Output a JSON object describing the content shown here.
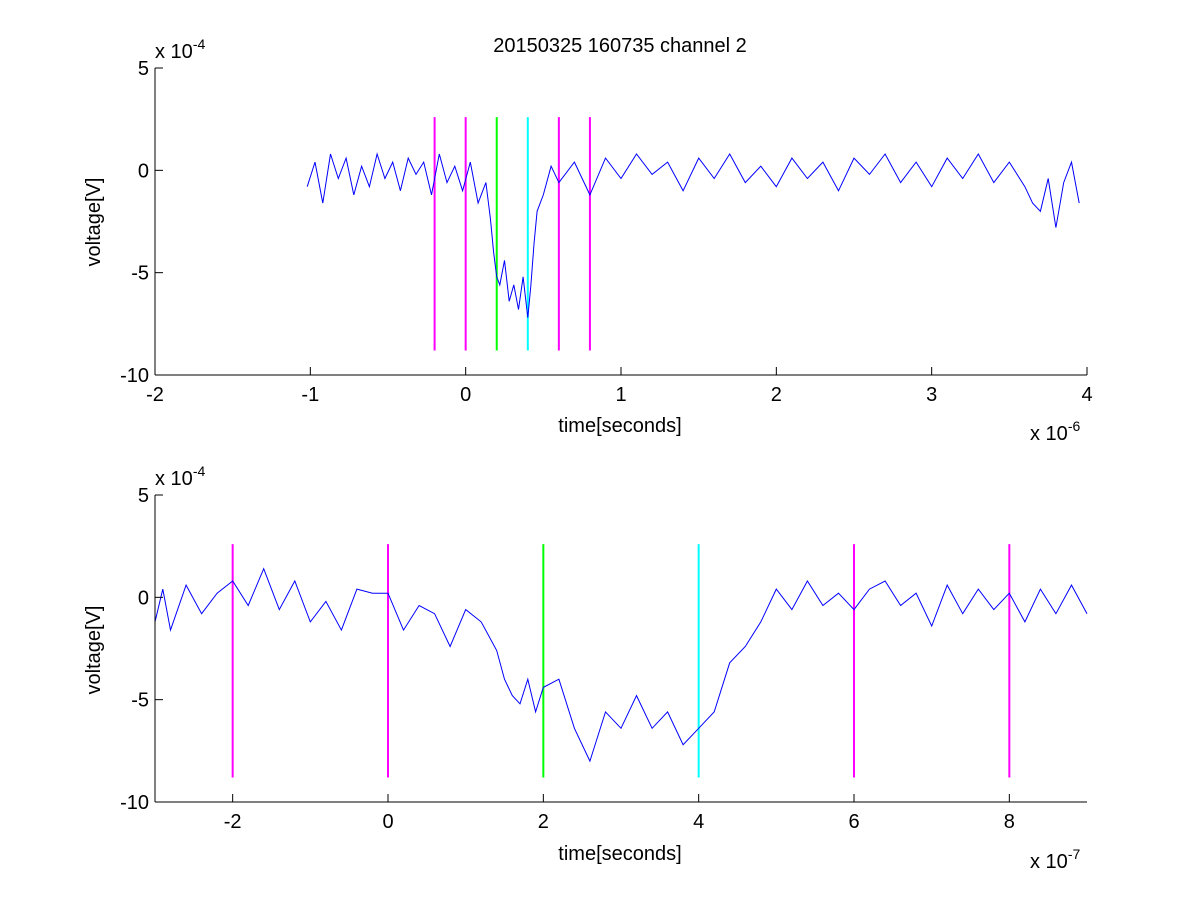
{
  "figure_title": "20150325 160735 channel 2",
  "chart_data": [
    {
      "type": "line",
      "title": "20150325 160735 channel 2",
      "xlabel": "time[seconds]",
      "ylabel": "voltage[V]",
      "x_exponent": "x 10",
      "x_exponent_power": "-6",
      "y_exponent": "x 10",
      "y_exponent_power": "-4",
      "xlim": [
        -2,
        4
      ],
      "ylim": [
        -10,
        5
      ],
      "xticks": [
        "-2",
        "-1",
        "0",
        "1",
        "2",
        "3",
        "4"
      ],
      "yticks": [
        "5",
        "0",
        "-5",
        "-10"
      ],
      "grid": false,
      "signal_color": "#0000ff",
      "series": [
        {
          "x": [
            -1.02,
            -0.97,
            -0.92,
            -0.87,
            -0.82,
            -0.77,
            -0.72,
            -0.67,
            -0.62,
            -0.57,
            -0.52,
            -0.47,
            -0.42,
            -0.37,
            -0.32,
            -0.27,
            -0.22,
            -0.17,
            -0.12,
            -0.07,
            -0.02,
            0.03,
            0.08,
            0.13,
            0.16,
            0.18,
            0.2,
            0.22,
            0.25,
            0.28,
            0.31,
            0.34,
            0.37,
            0.4,
            0.42,
            0.44,
            0.46,
            0.5,
            0.55,
            0.6,
            0.7,
            0.8,
            0.9,
            1.0,
            1.1,
            1.2,
            1.3,
            1.4,
            1.5,
            1.6,
            1.7,
            1.8,
            1.9,
            2.0,
            2.1,
            2.2,
            2.3,
            2.4,
            2.5,
            2.6,
            2.7,
            2.8,
            2.9,
            3.0,
            3.1,
            3.2,
            3.3,
            3.4,
            3.5,
            3.6,
            3.65,
            3.7,
            3.75,
            3.8,
            3.85,
            3.9,
            3.95
          ],
          "y": [
            -0.8,
            0.4,
            -1.6,
            0.8,
            -0.4,
            0.6,
            -1.2,
            0.2,
            -0.8,
            0.8,
            -0.4,
            0.4,
            -1.0,
            0.6,
            -0.2,
            0.4,
            -1.2,
            0.8,
            -0.6,
            0.2,
            -1.0,
            0.4,
            -1.6,
            -0.6,
            -2.4,
            -4.0,
            -5.2,
            -5.6,
            -4.4,
            -6.4,
            -5.6,
            -6.8,
            -5.2,
            -7.2,
            -5.6,
            -3.6,
            -2.0,
            -1.2,
            0.2,
            -0.6,
            0.4,
            -1.2,
            0.6,
            -0.4,
            0.8,
            -0.2,
            0.4,
            -1.0,
            0.6,
            -0.4,
            0.8,
            -0.6,
            0.2,
            -0.8,
            0.6,
            -0.4,
            0.4,
            -1.0,
            0.6,
            -0.2,
            0.8,
            -0.6,
            0.4,
            -0.8,
            0.6,
            -0.4,
            0.8,
            -0.6,
            0.4,
            -0.8,
            -1.6,
            -2.0,
            -0.4,
            -2.8,
            -0.6,
            0.4,
            -1.6
          ]
        }
      ],
      "markers": [
        {
          "x": -0.2,
          "color": "#ff00ff"
        },
        {
          "x": 0.0,
          "color": "#ff00ff"
        },
        {
          "x": 0.2,
          "color": "#00ff00"
        },
        {
          "x": 0.4,
          "color": "#00ffff"
        },
        {
          "x": 0.6,
          "color": "#ff00ff"
        },
        {
          "x": 0.8,
          "color": "#ff00ff"
        }
      ],
      "marker_range": [
        -8.8,
        2.6
      ]
    },
    {
      "type": "line",
      "title": "",
      "xlabel": "time[seconds]",
      "ylabel": "voltage[V]",
      "x_exponent": "x 10",
      "x_exponent_power": "-7",
      "y_exponent": "x 10",
      "y_exponent_power": "-4",
      "xlim": [
        -3,
        9
      ],
      "ylim": [
        -10,
        5
      ],
      "xticks": [
        "-2",
        "0",
        "2",
        "4",
        "6",
        "8"
      ],
      "xtick_values": [
        -2,
        0,
        2,
        4,
        6,
        8
      ],
      "yticks": [
        "5",
        "0",
        "-5",
        "-10"
      ],
      "grid": false,
      "signal_color": "#0000ff",
      "series": [
        {
          "x": [
            -3.0,
            -2.9,
            -2.8,
            -2.6,
            -2.4,
            -2.2,
            -2.0,
            -1.8,
            -1.6,
            -1.4,
            -1.2,
            -1.0,
            -0.8,
            -0.6,
            -0.4,
            -0.2,
            0.0,
            0.2,
            0.4,
            0.6,
            0.8,
            1.0,
            1.2,
            1.4,
            1.5,
            1.6,
            1.7,
            1.8,
            1.9,
            2.0,
            2.2,
            2.4,
            2.6,
            2.8,
            3.0,
            3.2,
            3.4,
            3.6,
            3.8,
            4.0,
            4.2,
            4.4,
            4.6,
            4.8,
            5.0,
            5.2,
            5.4,
            5.6,
            5.8,
            6.0,
            6.2,
            6.4,
            6.6,
            6.8,
            7.0,
            7.2,
            7.4,
            7.6,
            7.8,
            8.0,
            8.2,
            8.4,
            8.6,
            8.8,
            9.0
          ],
          "y": [
            -1.2,
            0.4,
            -1.6,
            0.6,
            -0.8,
            0.2,
            0.8,
            -0.4,
            1.4,
            -0.6,
            0.8,
            -1.2,
            -0.2,
            -1.6,
            0.4,
            0.2,
            0.2,
            -1.6,
            -0.4,
            -0.8,
            -2.4,
            -0.6,
            -1.2,
            -2.6,
            -4.0,
            -4.8,
            -5.2,
            -4.0,
            -5.6,
            -4.4,
            -4.0,
            -6.4,
            -8.0,
            -5.6,
            -6.4,
            -4.8,
            -6.4,
            -5.6,
            -7.2,
            -6.4,
            -5.6,
            -3.2,
            -2.4,
            -1.2,
            0.4,
            -0.6,
            0.8,
            -0.4,
            0.2,
            -0.6,
            0.4,
            0.8,
            -0.4,
            0.2,
            -1.4,
            0.6,
            -0.8,
            0.4,
            -0.6,
            0.2,
            -1.2,
            0.4,
            -0.8,
            0.6,
            -0.8
          ]
        }
      ],
      "markers": [
        {
          "x": -2,
          "color": "#ff00ff"
        },
        {
          "x": 0,
          "color": "#ff00ff"
        },
        {
          "x": 2,
          "color": "#00ff00"
        },
        {
          "x": 4,
          "color": "#00ffff"
        },
        {
          "x": 6,
          "color": "#ff00ff"
        },
        {
          "x": 8,
          "color": "#ff00ff"
        }
      ],
      "marker_range": [
        -8.8,
        2.6
      ]
    }
  ]
}
